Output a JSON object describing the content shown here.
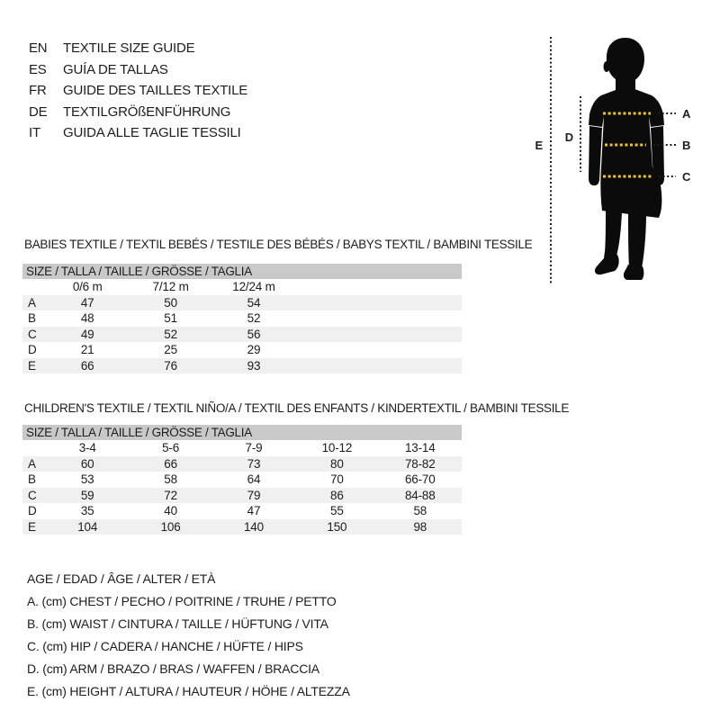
{
  "colors": {
    "text": "#1d1d1d",
    "table_header_bg": "#c9c9c9",
    "row_alt_bg": "#f0f0f0",
    "accent_yellow": "#eec51c",
    "guide_dotted": "#1c1c1c",
    "silhouette": "#0b0b0b"
  },
  "languages": {
    "items": [
      {
        "code": "EN",
        "label": "TEXTILE SIZE GUIDE"
      },
      {
        "code": "ES",
        "label": "GUÍA DE TALLAS"
      },
      {
        "code": "FR",
        "label": "GUIDE DES TAILLES TEXTILE"
      },
      {
        "code": "DE",
        "label": "TEXTILGRÖßENFÜHRUNG"
      },
      {
        "code": "IT",
        "label": "GUIDA ALLE TAGLIE TESSILI"
      }
    ]
  },
  "figure": {
    "labels": {
      "a": "A",
      "b": "B",
      "c": "C",
      "d": "D",
      "e": "E"
    }
  },
  "babies": {
    "title": "BABIES TEXTILE / TEXTIL BEBÉS / TESTILE DES BÉBÉS / BABYS TEXTIL / BAMBINI TESSILE",
    "size_header": "SIZE / TALLA / TAILLE / GRÖSSE / TAGLIA",
    "columns": [
      "0/6 m",
      "7/12 m",
      "12/24 m"
    ],
    "rows": [
      {
        "label": "A",
        "values": [
          "47",
          "50",
          "54"
        ]
      },
      {
        "label": "B",
        "values": [
          "48",
          "51",
          "52"
        ]
      },
      {
        "label": "C",
        "values": [
          "49",
          "52",
          "56"
        ]
      },
      {
        "label": "D",
        "values": [
          "21",
          "25",
          "29"
        ]
      },
      {
        "label": "E",
        "values": [
          "66",
          "76",
          "93"
        ]
      }
    ]
  },
  "children": {
    "title": "CHILDREN'S TEXTILE / TEXTIL NIÑO/A / TEXTIL DES ENFANTS / KINDERTEXTIL / BAMBINI TESSILE",
    "size_header": "SIZE / TALLA / TAILLE / GRÖSSE / TAGLIA",
    "columns": [
      "3-4",
      "5-6",
      "7-9",
      "10-12",
      "13-14"
    ],
    "rows": [
      {
        "label": "A",
        "values": [
          "60",
          "66",
          "73",
          "80",
          "78-82"
        ]
      },
      {
        "label": "B",
        "values": [
          "53",
          "58",
          "64",
          "70",
          "66-70"
        ]
      },
      {
        "label": "C",
        "values": [
          "59",
          "72",
          "79",
          "86",
          "84-88"
        ]
      },
      {
        "label": "D",
        "values": [
          "35",
          "40",
          "47",
          "55",
          "58"
        ]
      },
      {
        "label": "E",
        "values": [
          "104",
          "106",
          "140",
          "150",
          "98"
        ]
      }
    ]
  },
  "legend": {
    "lines": [
      "AGE / EDAD / ÂGE / ALTER / ETÀ",
      "A. (cm) CHEST / PECHO / POITRINE / TRUHE / PETTO",
      "B. (cm) WAIST / CINTURA / TAILLE / HÜFTUNG / VITA",
      "C. (cm) HIP / CADERA / HANCHE / HÜFTE / HIPS",
      "D. (cm) ARM / BRAZO / BRAS / WAFFEN / BRACCIA",
      "E. (cm) HEIGHT / ALTURA / HAUTEUR / HÖHE / ALTEZZA"
    ]
  }
}
